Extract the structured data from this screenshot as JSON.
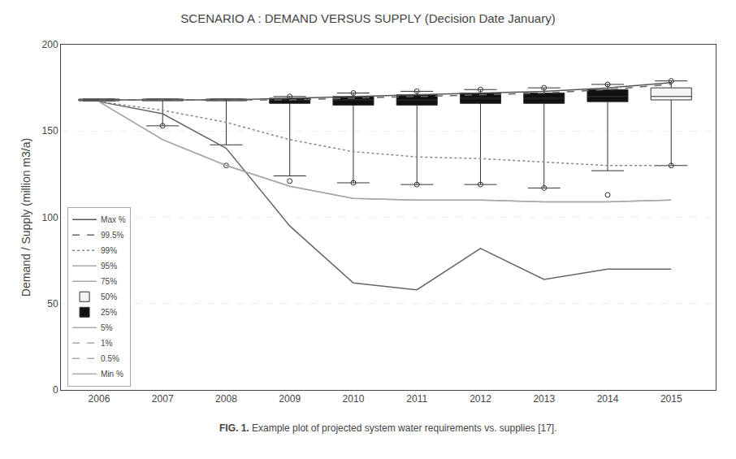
{
  "chart_data": {
    "type": "line",
    "title": "SCENARIO A : DEMAND VERSUS SUPPLY (Decision Date January)",
    "ylabel": "Demand / Supply (million m3/a)",
    "x": [
      2006,
      2007,
      2008,
      2009,
      2010,
      2011,
      2012,
      2013,
      2014,
      2015
    ],
    "xlim": [
      2005.4,
      2015.7
    ],
    "xticks": [
      2006,
      2007,
      2008,
      2009,
      2010,
      2011,
      2012,
      2013,
      2014,
      2015
    ],
    "ylim": [
      0,
      200
    ],
    "yticks": [
      0,
      50,
      100,
      150,
      200
    ],
    "grid": "y",
    "legend": "lower left",
    "color": "#333333",
    "series": [
      {
        "name": "Max %",
        "color": "#555555",
        "line_style": "solid",
        "values": [
          168,
          168,
          168,
          169,
          170,
          171,
          172,
          173,
          175,
          178
        ]
      },
      {
        "name": "99.5%",
        "color": "#666666",
        "line_style": "dash",
        "values": [
          168,
          168,
          168,
          168,
          169,
          170,
          171,
          172,
          174,
          177
        ]
      },
      {
        "name": "99%",
        "color": "#888888",
        "line_style": "dot",
        "values": [
          167,
          162,
          155,
          145,
          138,
          135,
          134,
          132,
          130,
          130
        ]
      },
      {
        "name": "95%",
        "color": "#aaaaaa",
        "line_style": "solid",
        "values": [
          167,
          145,
          130,
          118,
          111,
          110,
          110,
          109,
          109,
          110
        ]
      },
      {
        "name": "75%",
        "color": "#aaaaaa",
        "line_style": "solid",
        "values": [
          null,
          null,
          null,
          null,
          null,
          null,
          null,
          null,
          null,
          null
        ]
      },
      {
        "color": "#666666",
        "line_style": "solid",
        "values": [
          167,
          160,
          140,
          95,
          62,
          58,
          82,
          64,
          70,
          70
        ]
      },
      {
        "name": "50%",
        "type": "box",
        "color": "#f5f5f5",
        "x": [
          2006,
          2007,
          2008,
          2015
        ],
        "whisker_high": [
          168,
          168,
          168,
          179
        ],
        "q3": [
          168.5,
          168.5,
          168.5,
          175
        ],
        "median": [
          168,
          168,
          168,
          170
        ],
        "q1": [
          167.5,
          167.5,
          167.5,
          168
        ],
        "whisker_low": [
          168,
          153,
          142,
          130
        ],
        "outliers_high": [
          null,
          null,
          null,
          179
        ],
        "outliers_low": [
          null,
          153,
          130,
          130
        ]
      },
      {
        "name": "25%",
        "type": "box",
        "color": "#111111",
        "x": [
          2009,
          2010,
          2011,
          2012,
          2013,
          2014
        ],
        "whisker_high": [
          170,
          172,
          173,
          174,
          175,
          177
        ],
        "q3": [
          169,
          170,
          171,
          172,
          172,
          174
        ],
        "median": [
          168,
          168,
          168,
          169,
          169,
          170
        ],
        "q1": [
          166,
          165,
          165,
          166,
          166,
          167
        ],
        "whisker_low": [
          124,
          120,
          119,
          119,
          117,
          127
        ],
        "outliers_high": [
          170,
          172,
          173,
          174,
          175,
          177
        ],
        "outliers_low": [
          121,
          120,
          119,
          119,
          117,
          113
        ]
      },
      {
        "name": "5%",
        "color": "#aaaaaa",
        "line_style": "solid",
        "values": [
          null,
          null,
          null,
          null,
          null,
          null,
          null,
          null,
          null,
          null
        ]
      },
      {
        "name": "1%",
        "color": "#aaaaaa",
        "line_style": "dash",
        "values": [
          null,
          null,
          null,
          null,
          null,
          null,
          null,
          null,
          null,
          null
        ]
      },
      {
        "name": "0.5%",
        "color": "#aaaaaa",
        "line_style": "dash",
        "values": [
          null,
          null,
          null,
          null,
          null,
          null,
          null,
          null,
          null,
          null
        ]
      },
      {
        "name": "Min %",
        "color": "#aaaaaa",
        "line_style": "solid",
        "values": [
          167,
          145,
          130,
          118,
          111,
          110,
          110,
          109,
          109,
          110
        ]
      }
    ],
    "annotations": [
      "FIG. 1.",
      " Example plot of projected system water requirements vs. supplies [17]."
    ]
  }
}
